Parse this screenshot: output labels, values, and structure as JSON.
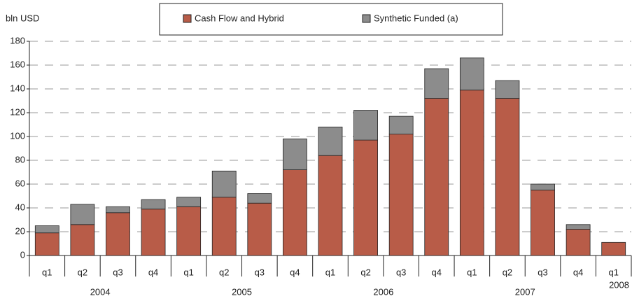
{
  "chart_data": {
    "type": "stacked_bar",
    "y_label": "bln USD",
    "groups": [
      {
        "label": "2004",
        "categories": [
          "q1",
          "q2",
          "q3",
          "q4"
        ]
      },
      {
        "label": "2005",
        "categories": [
          "q1",
          "q2",
          "q3",
          "q4"
        ]
      },
      {
        "label": "2006",
        "categories": [
          "q1",
          "q2",
          "q3",
          "q4"
        ]
      },
      {
        "label": "2007",
        "categories": [
          "q1",
          "q2",
          "q3",
          "q4"
        ]
      },
      {
        "label": "2008",
        "categories": [
          "q1"
        ]
      }
    ],
    "series": [
      {
        "name": "Cash Flow and Hybrid",
        "color": "#b85c48",
        "values": [
          19,
          26,
          36,
          39,
          41,
          49,
          44,
          72,
          84,
          97,
          102,
          132,
          139,
          132,
          55,
          22,
          11
        ]
      },
      {
        "name": "Synthetic Funded (a)",
        "color": "#8c8c8c",
        "values": [
          6,
          17,
          5,
          8,
          8,
          22,
          8,
          26,
          24,
          25,
          15,
          25,
          27,
          15,
          5,
          4,
          0
        ]
      }
    ],
    "ylim": [
      0,
      180
    ],
    "yticks": [
      0,
      20,
      40,
      60,
      80,
      100,
      120,
      140,
      160,
      180
    ],
    "grid": true
  }
}
